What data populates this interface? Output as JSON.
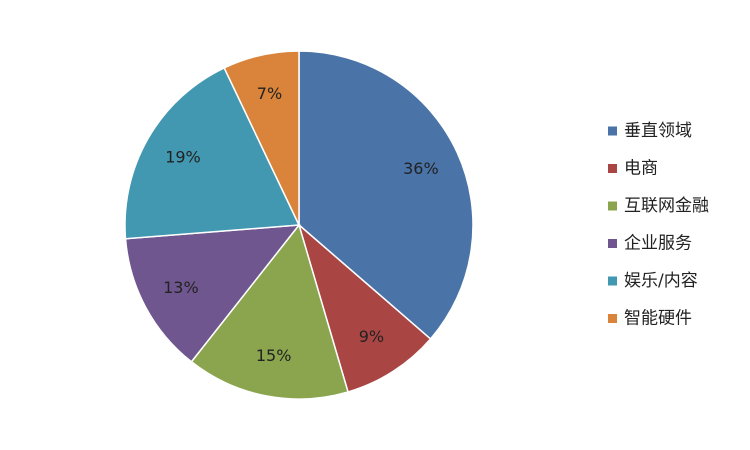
{
  "chart_data": {
    "type": "pie",
    "categories": [
      "垂直领域",
      "电商",
      "互联网金融",
      "企业服务",
      "娱乐/内容",
      "智能硬件"
    ],
    "values": [
      36,
      9,
      15,
      13,
      19,
      7
    ],
    "value_labels": [
      "36%",
      "9%",
      "15%",
      "13%",
      "19%",
      "7%"
    ],
    "colors": [
      "#4a73a8",
      "#a94543",
      "#8aa54e",
      "#6f568e",
      "#4198b0",
      "#d9843a"
    ],
    "legend": "right"
  }
}
